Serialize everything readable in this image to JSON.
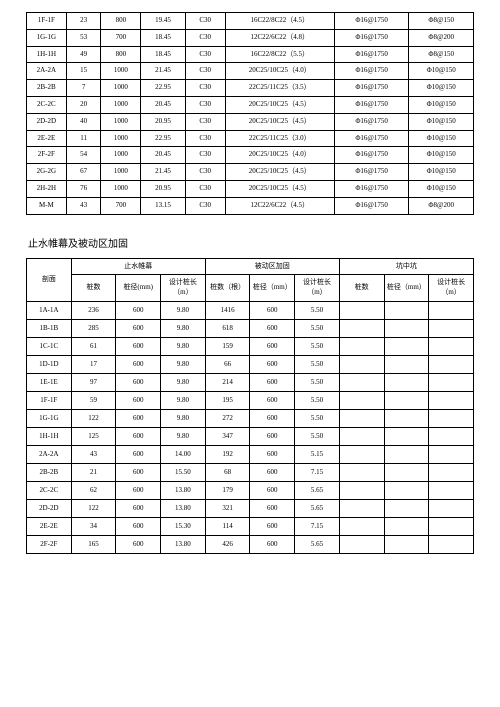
{
  "table1": {
    "col_widths": [
      "8%",
      "7%",
      "8%",
      "9%",
      "8%",
      "22%",
      "15%",
      "13%"
    ],
    "rows": [
      [
        "1F-1F",
        "23",
        "800",
        "19.45",
        "C30",
        "16C22/8C22（4.5）",
        "Φ16@1750",
        "Φ8@150"
      ],
      [
        "1G-1G",
        "53",
        "700",
        "18.45",
        "C30",
        "12C22/6C22（4.8）",
        "Φ16@1750",
        "Φ8@200"
      ],
      [
        "1H-1H",
        "49",
        "800",
        "18.45",
        "C30",
        "16C22/8C22（5.5）",
        "Φ16@1750",
        "Φ8@150"
      ],
      [
        "2A-2A",
        "15",
        "1000",
        "21.45",
        "C30",
        "20C25/10C25（4.0）",
        "Φ16@1750",
        "Φ10@150"
      ],
      [
        "2B-2B",
        "7",
        "1000",
        "22.95",
        "C30",
        "22C25/11C25（3.5）",
        "Φ16@1750",
        "Φ10@150"
      ],
      [
        "2C-2C",
        "20",
        "1000",
        "20.45",
        "C30",
        "20C25/10C25（4.5）",
        "Φ16@1750",
        "Φ10@150"
      ],
      [
        "2D-2D",
        "40",
        "1000",
        "20.95",
        "C30",
        "20C25/10C25（4.5）",
        "Φ16@1750",
        "Φ10@150"
      ],
      [
        "2E-2E",
        "11",
        "1000",
        "22.95",
        "C30",
        "22C25/11C25（3.0）",
        "Φ16@1750",
        "Φ10@150"
      ],
      [
        "2F-2F",
        "54",
        "1000",
        "20.45",
        "C30",
        "20C25/10C25（4.0）",
        "Φ16@1750",
        "Φ10@150"
      ],
      [
        "2G-2G",
        "67",
        "1000",
        "21.45",
        "C30",
        "20C25/10C25（4.5）",
        "Φ16@1750",
        "Φ10@150"
      ],
      [
        "2H-2H",
        "76",
        "1000",
        "20.95",
        "C30",
        "20C25/10C25（4.5）",
        "Φ16@1750",
        "Φ10@150"
      ],
      [
        "M-M",
        "43",
        "700",
        "13.15",
        "C30",
        "12C22/6C22（4.5）",
        "Φ16@1750",
        "Φ8@200"
      ]
    ]
  },
  "section_title": "止水帷幕及被动区加固",
  "table2": {
    "header": {
      "c0": "剖面",
      "groups": [
        "止水帷幕",
        "被动区加固",
        "坑中坑"
      ],
      "sub": [
        "桩数",
        "桩径(mm)",
        "设计桩长（m）",
        "桩数（根）",
        "桩径（mm）",
        "设计桩长（m）",
        "桩数",
        "桩径（mm）",
        "设计桩长（m）"
      ]
    },
    "rows": [
      [
        "1A-1A",
        "236",
        "600",
        "9.80",
        "1416",
        "600",
        "5.50",
        "",
        "",
        ""
      ],
      [
        "1B-1B",
        "285",
        "600",
        "9.80",
        "618",
        "600",
        "5.50",
        "",
        "",
        ""
      ],
      [
        "1C-1C",
        "61",
        "600",
        "9.80",
        "159",
        "600",
        "5.50",
        "",
        "",
        ""
      ],
      [
        "1D-1D",
        "17",
        "600",
        "9.80",
        "66",
        "600",
        "5.50",
        "",
        "",
        ""
      ],
      [
        "1E-1E",
        "97",
        "600",
        "9.80",
        "214",
        "600",
        "5.50",
        "",
        "",
        ""
      ],
      [
        "1F-1F",
        "59",
        "600",
        "9.80",
        "195",
        "600",
        "5.50",
        "",
        "",
        ""
      ],
      [
        "1G-1G",
        "122",
        "600",
        "9.80",
        "272",
        "600",
        "5.50",
        "",
        "",
        ""
      ],
      [
        "1H-1H",
        "125",
        "600",
        "9.80",
        "347",
        "600",
        "5.50",
        "",
        "",
        ""
      ],
      [
        "2A-2A",
        "43",
        "600",
        "14.00",
        "192",
        "600",
        "5.15",
        "",
        "",
        ""
      ],
      [
        "2B-2B",
        "21",
        "600",
        "15.50",
        "68",
        "600",
        "7.15",
        "",
        "",
        ""
      ],
      [
        "2C-2C",
        "62",
        "600",
        "13.80",
        "179",
        "600",
        "5.65",
        "",
        "",
        ""
      ],
      [
        "2D-2D",
        "122",
        "600",
        "13.80",
        "321",
        "600",
        "5.65",
        "",
        "",
        ""
      ],
      [
        "2E-2E",
        "34",
        "600",
        "15.30",
        "114",
        "600",
        "7.15",
        "",
        "",
        ""
      ],
      [
        "2F-2F",
        "165",
        "600",
        "13.80",
        "426",
        "600",
        "5.65",
        "",
        "",
        ""
      ]
    ]
  }
}
